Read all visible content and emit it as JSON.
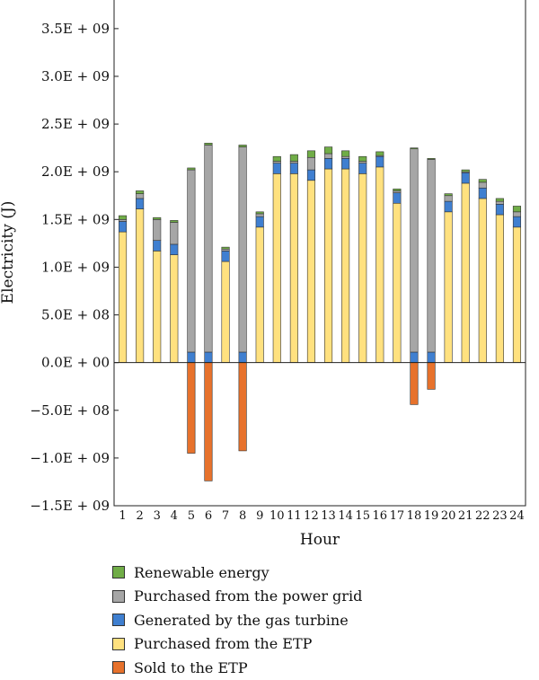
{
  "chart_data": {
    "type": "bar",
    "stacked": true,
    "xlabel": "Hour",
    "ylabel": "Electricity (J)",
    "ylim": [
      -1500000000.0,
      3800000000.0
    ],
    "yticks": [
      3500000000.0,
      3000000000.0,
      2500000000.0,
      2000000000.0,
      1500000000.0,
      1000000000.0,
      500000000.0,
      0,
      -500000000.0,
      -1000000000.0,
      -1500000000.0
    ],
    "ytick_labels": [
      "3.5E + 09",
      "3.0E + 09",
      "2.5E + 09",
      "2.0E + 09",
      "1.5E + 09",
      "1.0E + 09",
      "5.0E + 08",
      "0.0E + 00",
      "−5.0E + 08",
      "−1.0E + 09",
      "−1.5E + 09"
    ],
    "categories": [
      "1",
      "2",
      "3",
      "4",
      "5",
      "6",
      "7",
      "8",
      "9",
      "10",
      "11",
      "12",
      "13",
      "14",
      "15",
      "16",
      "17",
      "18",
      "19",
      "20",
      "21",
      "22",
      "23",
      "24"
    ],
    "grid": false,
    "legend_position": "bottom",
    "series": [
      {
        "name": "Purchased from the ETP",
        "color": "#FFE17F",
        "values": [
          1370000000.0,
          1610000000.0,
          1170000000.0,
          1130000000.0,
          0,
          0,
          1060000000.0,
          0,
          1420000000.0,
          1980000000.0,
          1980000000.0,
          1910000000.0,
          2030000000.0,
          2030000000.0,
          1980000000.0,
          2050000000.0,
          1670000000.0,
          0,
          0,
          1580000000.0,
          1880000000.0,
          1720000000.0,
          1550000000.0,
          1420000000.0
        ]
      },
      {
        "name": "Generated by the gas turbine",
        "color": "#3F7FD0",
        "values": [
          110000000.0,
          110000000.0,
          110000000.0,
          110000000.0,
          110000000.0,
          110000000.0,
          110000000.0,
          110000000.0,
          110000000.0,
          110000000.0,
          110000000.0,
          110000000.0,
          110000000.0,
          110000000.0,
          110000000.0,
          110000000.0,
          110000000.0,
          110000000.0,
          110000000.0,
          110000000.0,
          110000000.0,
          110000000.0,
          110000000.0,
          110000000.0
        ]
      },
      {
        "name": "Purchased from the power grid",
        "color": "#A6A6A6",
        "values": [
          20000000.0,
          50000000.0,
          220000000.0,
          230000000.0,
          1910000000.0,
          2170000000.0,
          20000000.0,
          2150000000.0,
          30000000.0,
          20000000.0,
          20000000.0,
          130000000.0,
          50000000.0,
          20000000.0,
          20000000.0,
          10000000.0,
          20000000.0,
          2130000000.0,
          2020000000.0,
          60000000.0,
          10000000.0,
          60000000.0,
          30000000.0,
          50000000.0
        ]
      },
      {
        "name": "Renewable energy",
        "color": "#70AD47",
        "values": [
          40000000.0,
          30000000.0,
          20000000.0,
          20000000.0,
          20000000.0,
          20000000.0,
          20000000.0,
          20000000.0,
          20000000.0,
          50000000.0,
          70000000.0,
          70000000.0,
          70000000.0,
          60000000.0,
          50000000.0,
          40000000.0,
          20000000.0,
          10000000.0,
          10000000.0,
          20000000.0,
          20000000.0,
          30000000.0,
          30000000.0,
          60000000.0
        ]
      },
      {
        "name": "Sold to the ETP",
        "color": "#E7722C",
        "values": [
          0,
          0,
          0,
          0,
          -950000000.0,
          -1240000000.0,
          0,
          -925000000.0,
          0,
          0,
          0,
          0,
          0,
          0,
          0,
          0,
          0,
          -440000000.0,
          -280000000.0,
          0,
          0,
          0,
          0,
          0
        ]
      }
    ],
    "legend_order": [
      "Renewable energy",
      "Purchased from the power grid",
      "Generated by the gas turbine",
      "Purchased from the ETP",
      "Sold to the ETP"
    ]
  }
}
